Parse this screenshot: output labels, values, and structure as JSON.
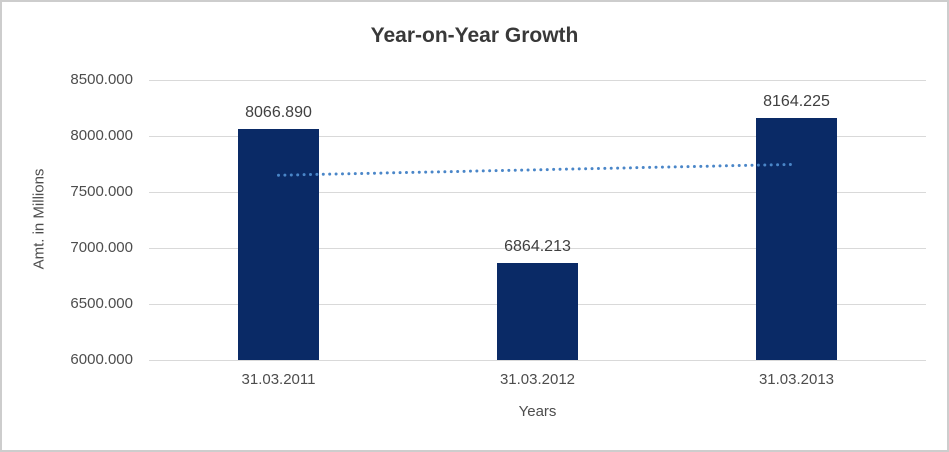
{
  "chart_data": {
    "type": "bar",
    "title": "Year-on-Year Growth",
    "xlabel": "Years",
    "ylabel": "Amt. in Millions",
    "categories": [
      "31.03.2011",
      "31.03.2012",
      "31.03.2013"
    ],
    "values": [
      8066.89,
      6864.213,
      8164.225
    ],
    "data_labels": [
      "8066.890",
      "6864.213",
      "8164.225"
    ],
    "ylim": [
      6000,
      8500
    ],
    "ytick_step": 500,
    "ytick_labels": [
      "8500.000",
      "8000.000",
      "7500.000",
      "7000.000",
      "6500.000",
      "6000.000"
    ],
    "grid": true,
    "legend": false,
    "trendline": {
      "type": "linear",
      "line_style": "dotted",
      "color": "#4a86c8"
    },
    "colors": {
      "bar": "#0a2a66",
      "trendline": "#4a86c8",
      "gridline": "#d9d9d9",
      "axis_text": "#4d4d4d",
      "title_text": "#393939",
      "chart_border": "#cdcdcd",
      "background": "#ffffff"
    }
  }
}
